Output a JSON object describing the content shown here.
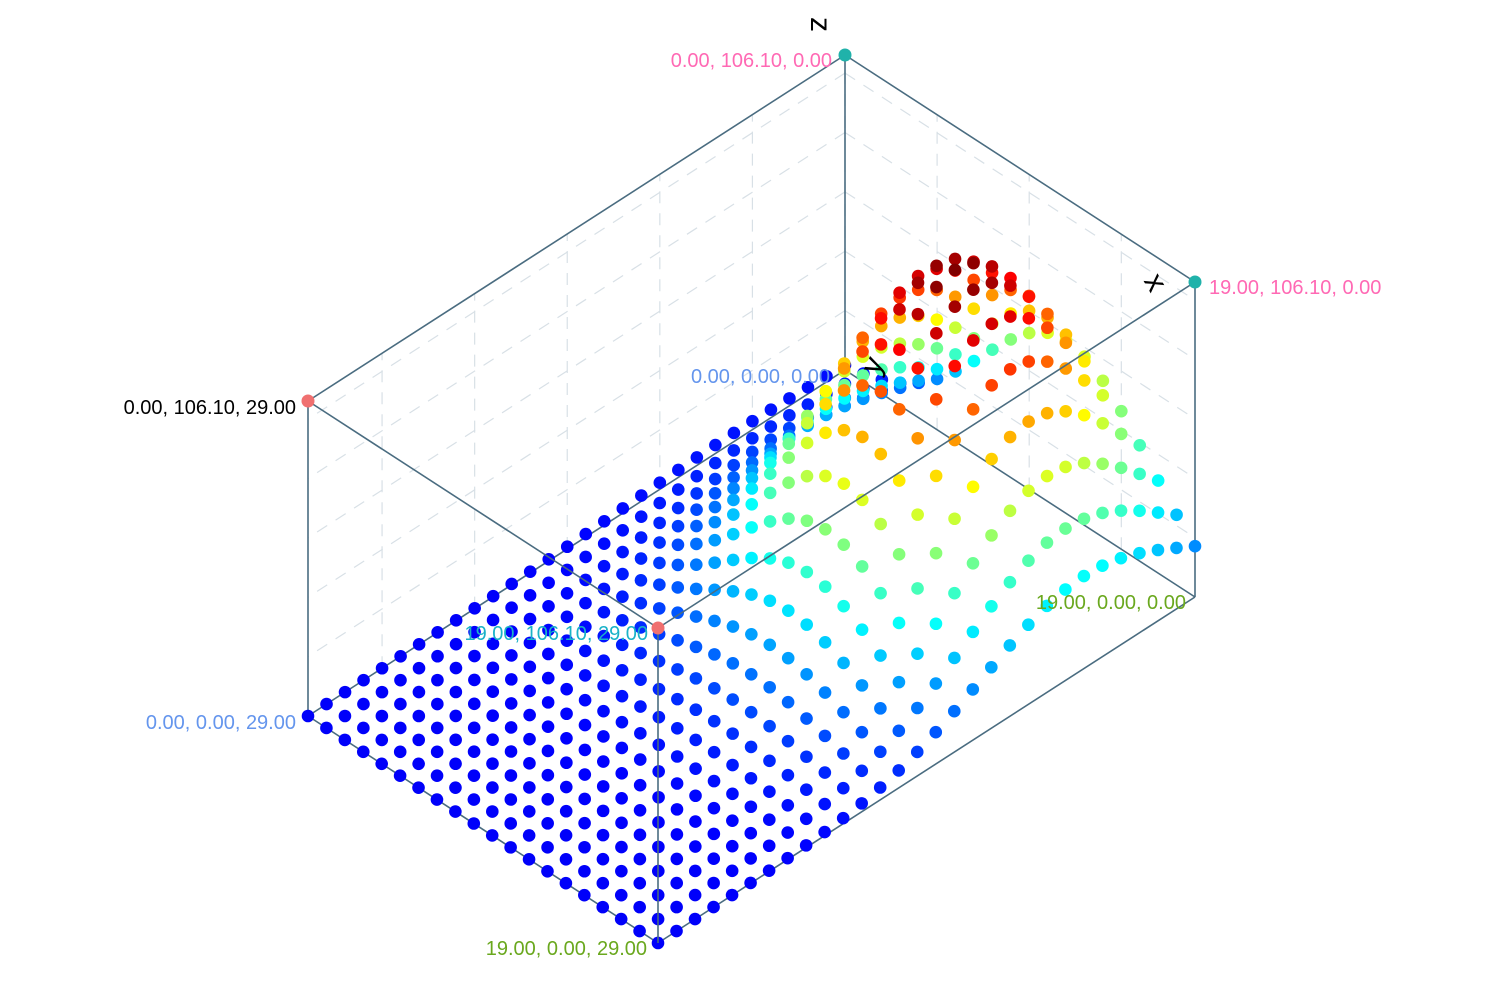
{
  "chart_data": {
    "type": "scatter",
    "subtype": "3d-surface-points",
    "title": "",
    "axes": {
      "x": {
        "label": "x",
        "range": [
          0,
          19
        ]
      },
      "y": {
        "label": "y",
        "range": [
          0,
          106.1
        ]
      },
      "z": {
        "label": "z",
        "range": [
          0,
          29
        ]
      }
    },
    "grid": true,
    "grid_size": {
      "x_count": 20,
      "z_count": 30
    },
    "y_formula": "bump",
    "y_peak": {
      "x": 12,
      "z": 6,
      "value": 106.1
    },
    "colormap": "jet",
    "corner_labels": [
      {
        "text": "0.00, 106.10, 0.00",
        "color": "#ff69b4"
      },
      {
        "text": "19.00, 106.10, 0.00",
        "color": "#ff69b4"
      },
      {
        "text": "0.00, 106.10, 29.00",
        "color": "#000000"
      },
      {
        "text": "0.00, 0.00, 0.00",
        "color": "#6495ed"
      },
      {
        "text": "19.00, 106.10, 29.00",
        "color": "#1ab2c8"
      },
      {
        "text": "0.00, 0.00, 29.00",
        "color": "#6495ed"
      },
      {
        "text": "19.00, 0.00, 0.00",
        "color": "#6aa81e"
      },
      {
        "text": "19.00, 0.00, 29.00",
        "color": "#6aa81e"
      }
    ],
    "corner_marker_colors": {
      "top_back": "#20b2aa",
      "top_front": "#f07070"
    },
    "box_color": "#4a6c80",
    "grid_color": "#d8e0e6"
  }
}
